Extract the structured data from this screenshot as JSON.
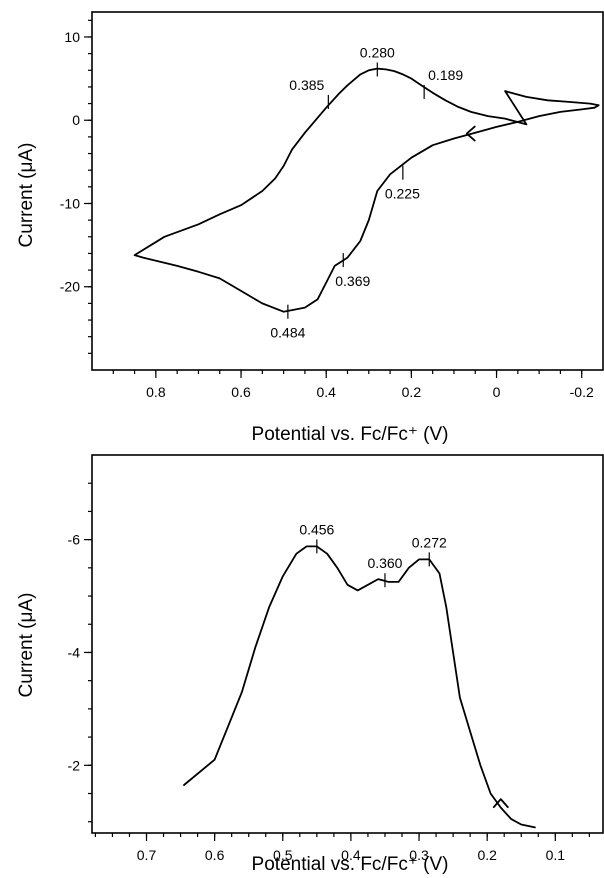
{
  "chart_data": [
    {
      "type": "line",
      "xlabel": "Potential vs. Fc/Fc⁺ (V)",
      "ylabel": "Current (μA)",
      "xlim": [
        0.95,
        -0.25
      ],
      "ylim": [
        -30,
        13
      ],
      "x_ticks": [
        "0.8",
        "0.6",
        "0.4",
        "0.2",
        "0",
        "-0.2"
      ],
      "y_ticks": [
        "10",
        "0",
        "-10",
        "-20"
      ],
      "series": [
        {
          "x": [
            -0.07,
            -0.02,
            0.02,
            0.06,
            0.09,
            0.12,
            0.15,
            0.18,
            0.2,
            0.22,
            0.24,
            0.26,
            0.28,
            0.3,
            0.32,
            0.35,
            0.37,
            0.4,
            0.42,
            0.45,
            0.48,
            0.5,
            0.52,
            0.55,
            0.6,
            0.65,
            0.7,
            0.78,
            0.85,
            0.83,
            0.75,
            0.7,
            0.65,
            0.6,
            0.55,
            0.5,
            0.45,
            0.42,
            0.4,
            0.38,
            0.35,
            0.32,
            0.3,
            0.28,
            0.25,
            0.2,
            0.15,
            0.1,
            0.05,
            0.0,
            -0.05,
            -0.1,
            -0.15,
            -0.2,
            -0.23,
            -0.24,
            -0.22,
            -0.17,
            -0.12,
            -0.07,
            -0.02
          ],
          "y": [
            -0.5,
            0.2,
            0.5,
            1.0,
            1.6,
            2.4,
            3.3,
            4.3,
            5.0,
            5.5,
            5.9,
            6.1,
            6.2,
            6.0,
            5.5,
            4.2,
            3.2,
            1.5,
            0.3,
            -1.5,
            -3.5,
            -5.5,
            -7.0,
            -8.5,
            -10.2,
            -11.3,
            -12.5,
            -14.0,
            -16.2,
            -16.5,
            -17.5,
            -18.2,
            -19.0,
            -20.5,
            -22.0,
            -23.0,
            -22.5,
            -21.5,
            -19.5,
            -17.5,
            -16.5,
            -14.5,
            -12.0,
            -8.5,
            -6.5,
            -4.5,
            -3.0,
            -2.2,
            -1.5,
            -0.8,
            -0.2,
            0.5,
            1.0,
            1.3,
            1.5,
            1.8,
            2.0,
            2.2,
            2.4,
            2.8,
            3.5
          ],
          "closed": true
        }
      ],
      "annotations": [
        {
          "text": "0.280",
          "x": 0.28,
          "y": 6.1
        },
        {
          "text": "0.385",
          "x": 0.395,
          "y": 2.2
        },
        {
          "text": "0.189",
          "x": 0.17,
          "y": 3.4
        },
        {
          "text": "0.225",
          "x": 0.22,
          "y": -6.3
        },
        {
          "text": "0.369",
          "x": 0.36,
          "y": -16.8
        },
        {
          "text": "0.484",
          "x": 0.49,
          "y": -23.0
        }
      ],
      "sweep_arrow": {
        "x": 0.07,
        "y": -1.6,
        "direction": "left"
      }
    },
    {
      "type": "line",
      "xlabel": "Potential vs. Fc/Fc⁺ (V)",
      "ylabel": "Current (μA)",
      "xlim": [
        0.78,
        0.03
      ],
      "ylim": [
        -0.8,
        -7.5
      ],
      "x_ticks": [
        "0.7",
        "0.6",
        "0.5",
        "0.4",
        "0.3",
        "0.2",
        "0.1"
      ],
      "y_ticks": [
        "-6",
        "-4",
        "-2"
      ],
      "series": [
        {
          "x": [
            0.645,
            0.6,
            0.58,
            0.56,
            0.54,
            0.52,
            0.5,
            0.48,
            0.465,
            0.45,
            0.435,
            0.42,
            0.405,
            0.39,
            0.375,
            0.36,
            0.345,
            0.33,
            0.315,
            0.3,
            0.285,
            0.27,
            0.26,
            0.25,
            0.24,
            0.225,
            0.21,
            0.195,
            0.18,
            0.165,
            0.15,
            0.13
          ],
          "y": [
            -1.65,
            -2.1,
            -2.7,
            -3.3,
            -4.1,
            -4.8,
            -5.35,
            -5.75,
            -5.88,
            -5.88,
            -5.75,
            -5.5,
            -5.2,
            -5.1,
            -5.2,
            -5.3,
            -5.25,
            -5.25,
            -5.5,
            -5.65,
            -5.65,
            -5.4,
            -4.8,
            -4.0,
            -3.2,
            -2.6,
            -2.0,
            -1.5,
            -1.25,
            -1.05,
            -0.95,
            -0.9
          ]
        }
      ],
      "annotations": [
        {
          "text": "0.456",
          "x": 0.45,
          "y": -5.88
        },
        {
          "text": "0.360",
          "x": 0.35,
          "y": -5.28
        },
        {
          "text": "0.272",
          "x": 0.285,
          "y": -5.65
        }
      ],
      "sweep_arrow": {
        "x": 0.18,
        "y": -1.4,
        "direction": "up"
      }
    }
  ]
}
